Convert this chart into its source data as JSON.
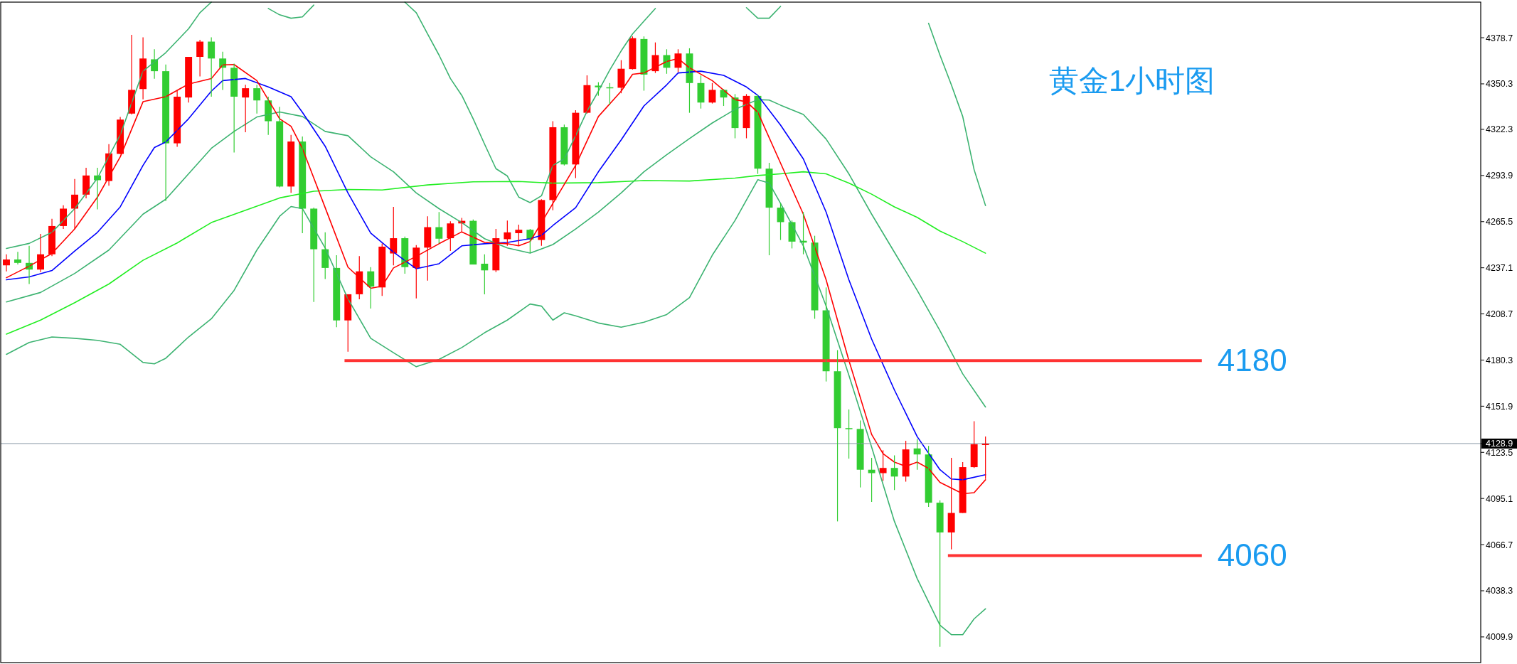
{
  "chart_data": {
    "type": "candlestick",
    "title": "黄金1小时图",
    "categories": [
      null,
      null,
      null,
      null,
      null,
      null,
      null,
      null,
      null,
      null,
      null,
      null,
      null,
      null,
      null,
      null,
      null,
      null,
      null,
      null,
      null,
      null,
      null,
      null,
      null,
      null,
      null,
      null,
      null,
      null,
      null,
      null,
      null,
      null,
      null,
      null,
      null,
      null,
      null,
      null,
      null,
      null,
      null,
      null,
      null,
      null,
      null,
      null,
      null,
      null,
      null,
      null,
      null,
      null,
      null,
      null,
      null,
      null,
      null,
      null,
      null,
      null,
      null,
      null,
      null,
      null,
      null,
      null,
      null,
      null,
      null,
      null,
      null,
      null,
      null,
      null,
      null,
      null,
      null,
      null,
      null,
      null,
      null,
      null,
      null,
      null,
      null,
      null,
      null,
      null,
      null,
      null,
      null,
      null,
      null,
      null,
      null,
      null,
      null,
      null,
      null,
      null,
      null,
      null,
      null,
      null,
      null,
      null,
      null,
      null,
      null,
      null,
      null,
      null,
      null,
      null,
      null,
      null,
      null,
      null,
      null,
      null,
      null,
      null,
      null,
      null,
      null,
      null,
      null,
      null
    ],
    "ohlc": [
      [
        4238.6,
        4245.4,
        4234.9,
        4242.2
      ],
      [
        4242.2,
        4246.9,
        4239.1,
        4240.1
      ],
      [
        4240.1,
        4250.6,
        4227.1,
        4236.0
      ],
      [
        4236.0,
        4257.9,
        4234.4,
        4245.4
      ],
      [
        4245.4,
        4267.3,
        4244.3,
        4262.8
      ],
      [
        4262.8,
        4275.6,
        4261.0,
        4273.5
      ],
      [
        4273.5,
        4291.8,
        4261.0,
        4282.1
      ],
      [
        4282.1,
        4298.6,
        4279.8,
        4293.9
      ],
      [
        4293.9,
        4298.6,
        4273.0,
        4291.0
      ],
      [
        4290.5,
        4313.2,
        4287.6,
        4307.5
      ],
      [
        4307.2,
        4329.9,
        4307.0,
        4328.3
      ],
      [
        4332.0,
        4380.5,
        4331.5,
        4346.6
      ],
      [
        4347.1,
        4378.9,
        4340.8,
        4365.9
      ],
      [
        4365.4,
        4371.6,
        4353.4,
        4358.1
      ],
      [
        4358.1,
        4362.2,
        4278.2,
        4313.7
      ],
      [
        4313.7,
        4346.1,
        4311.6,
        4342.4
      ],
      [
        4341.9,
        4366.9,
        4338.8,
        4366.9
      ],
      [
        4366.9,
        4377.4,
        4354.9,
        4376.3
      ],
      [
        4376.3,
        4378.9,
        4342.4,
        4365.9
      ],
      [
        4365.9,
        4370.1,
        4346.6,
        4360.2
      ],
      [
        4360.2,
        4362.8,
        4308.0,
        4342.4
      ],
      [
        4341.9,
        4349.7,
        4320.5,
        4347.6
      ],
      [
        4347.6,
        4349.7,
        4332.0,
        4340.1
      ],
      [
        4340.1,
        4342.4,
        4318.9,
        4327.3
      ],
      [
        4327.3,
        4336.2,
        4286.6,
        4287.1
      ],
      [
        4287.1,
        4318.9,
        4283.2,
        4314.8
      ],
      [
        4314.8,
        4317.9,
        4258.4,
        4273.5
      ],
      [
        4273.5,
        4274.1,
        4216.1,
        4248.5
      ],
      [
        4248.5,
        4258.9,
        4230.2,
        4237.0
      ],
      [
        4237.0,
        4244.8,
        4200.5,
        4204.7
      ],
      [
        4204.7,
        4220.8,
        4185.4,
        4220.8
      ],
      [
        4220.8,
        4244.3,
        4217.7,
        4234.9
      ],
      [
        4234.9,
        4237.5,
        4212.0,
        4225.5
      ],
      [
        4225.0,
        4252.1,
        4219.8,
        4250.1
      ],
      [
        4245.9,
        4274.6,
        4238.6,
        4255.3
      ],
      [
        4255.3,
        4256.3,
        4233.4,
        4237.5
      ],
      [
        4237.0,
        4251.1,
        4218.2,
        4249.5
      ],
      [
        4249.5,
        4268.8,
        4229.2,
        4262.1
      ],
      [
        4262.1,
        4271.4,
        4252.1,
        4255.0
      ],
      [
        4255.3,
        4265.7,
        4247.4,
        4264.4
      ],
      [
        4264.4,
        4267.8,
        4258.9,
        4266.0
      ],
      [
        4266.0,
        4266.8,
        4239.1,
        4239.1
      ],
      [
        4239.6,
        4245.4,
        4220.8,
        4235.5
      ],
      [
        4235.5,
        4261.0,
        4234.4,
        4255.3
      ],
      [
        4254.7,
        4266.2,
        4250.6,
        4258.9
      ],
      [
        4258.4,
        4263.6,
        4250.6,
        4260.5
      ],
      [
        4260.5,
        4261.0,
        4246.4,
        4254.5
      ],
      [
        4254.2,
        4279.3,
        4250.6,
        4278.8
      ],
      [
        4278.8,
        4327.3,
        4272.5,
        4323.6
      ],
      [
        4323.6,
        4325.2,
        4300.1,
        4300.7
      ],
      [
        4300.7,
        4334.1,
        4292.3,
        4332.5
      ],
      [
        4332.5,
        4355.5,
        4332.0,
        4349.5
      ],
      [
        4349.2,
        4351.3,
        4343.0,
        4348.2
      ],
      [
        4348.2,
        4350.8,
        4337.2,
        4347.6
      ],
      [
        4347.9,
        4364.9,
        4344.5,
        4359.6
      ],
      [
        4359.4,
        4379.5,
        4359.1,
        4378.4
      ],
      [
        4377.9,
        4379.5,
        4346.1,
        4356.0
      ],
      [
        4358.1,
        4375.8,
        4357.0,
        4368.0
      ],
      [
        4368.0,
        4371.6,
        4356.5,
        4360.2
      ],
      [
        4360.2,
        4371.6,
        4357.5,
        4369.0
      ],
      [
        4369.0,
        4372.2,
        4332.5,
        4350.8
      ],
      [
        4350.8,
        4355.5,
        4335.1,
        4338.8
      ],
      [
        4338.8,
        4350.8,
        4338.2,
        4346.6
      ],
      [
        4346.6,
        4347.1,
        4336.7,
        4341.9
      ],
      [
        4341.9,
        4344.0,
        4316.8,
        4323.1
      ],
      [
        4323.1,
        4344.0,
        4316.8,
        4342.9
      ],
      [
        4342.9,
        4343.5,
        4294.9,
        4298.1
      ],
      [
        4298.1,
        4301.7,
        4244.8,
        4274.1
      ],
      [
        4274.1,
        4276.7,
        4254.2,
        4265.2
      ],
      [
        4265.2,
        4266.2,
        4249.0,
        4253.2
      ],
      [
        4253.7,
        4271.4,
        4245.4,
        4252.6
      ],
      [
        4252.6,
        4256.8,
        4205.7,
        4210.9
      ],
      [
        4210.9,
        4225.0,
        4167.1,
        4173.4
      ],
      [
        4173.4,
        4186.4,
        4081.0,
        4138.4
      ],
      [
        4138.4,
        4149.9,
        4119.6,
        4137.9
      ],
      [
        4137.9,
        4143.1,
        4101.9,
        4112.8
      ],
      [
        4112.8,
        4120.1,
        4093.0,
        4110.7
      ],
      [
        4110.7,
        4124.8,
        4106.0,
        4113.9
      ],
      [
        4113.9,
        4121.7,
        4100.3,
        4108.6
      ],
      [
        4108.6,
        4130.6,
        4105.5,
        4125.3
      ],
      [
        4125.9,
        4131.6,
        4112.8,
        4122.2
      ],
      [
        4122.2,
        4127.4,
        4089.9,
        4092.5
      ],
      [
        4092.5,
        4094.0,
        4003.8,
        4074.2
      ],
      [
        4074.2,
        4120.1,
        4063.8,
        4086.2
      ],
      [
        4086.2,
        4117.5,
        4086.2,
        4114.4
      ],
      [
        4114.4,
        4142.6,
        4113.9,
        4128.5
      ],
      [
        4128.0,
        4133.2,
        4107.1,
        4128.9
      ],
      null,
      null,
      null,
      null,
      null,
      null,
      null,
      null,
      null,
      null,
      null,
      null,
      null,
      null,
      null,
      null,
      null,
      null,
      null,
      null,
      null,
      null,
      null,
      null,
      null,
      null,
      null,
      null,
      null,
      null,
      null,
      null,
      null,
      null,
      null,
      null,
      null,
      null,
      null,
      null,
      null,
      null,
      null
    ],
    "colors": [
      "#ff0000",
      "#32cd32",
      "#32cd32",
      "#ff0000",
      "#ff0000",
      "#ff0000",
      "#ff0000",
      "#ff0000",
      "#32cd32",
      "#ff0000",
      "#ff0000",
      "#ff0000",
      "#ff0000",
      "#32cd32",
      "#32cd32",
      "#ff0000",
      "#ff0000",
      "#ff0000",
      "#32cd32",
      "#32cd32",
      "#32cd32",
      "#ff0000",
      "#32cd32",
      "#32cd32",
      "#32cd32",
      "#ff0000",
      "#32cd32",
      "#32cd32",
      "#32cd32",
      "#32cd32",
      "#ff0000",
      "#ff0000",
      "#32cd32",
      "#ff0000",
      "#ff0000",
      "#32cd32",
      "#ff0000",
      "#ff0000",
      "#32cd32",
      "#ff0000",
      "#ff0000",
      "#32cd32",
      "#32cd32",
      "#ff0000",
      "#ff0000",
      "#ff0000",
      "#32cd32",
      "#ff0000",
      "#ff0000",
      "#32cd32",
      "#ff0000",
      "#ff0000",
      "#32cd32",
      "#32cd32",
      "#ff0000",
      "#ff0000",
      "#32cd32",
      "#ff0000",
      "#32cd32",
      "#ff0000",
      "#32cd32",
      "#32cd32",
      "#ff0000",
      "#32cd32",
      "#32cd32",
      "#ff0000",
      "#32cd32",
      "#32cd32",
      "#32cd32",
      "#32cd32",
      "#32cd32",
      "#32cd32",
      "#32cd32",
      "#32cd32",
      "#32cd32",
      "#32cd32",
      "#32cd32",
      "#ff0000",
      "#32cd32",
      "#ff0000",
      "#32cd32",
      "#32cd32",
      "#32cd32",
      "#ff0000",
      "#ff0000",
      "#ff0000",
      "#ff0000",
      null,
      null,
      null,
      null,
      null,
      null,
      null,
      null,
      null,
      null,
      null,
      null,
      null,
      null,
      null,
      null,
      null,
      null,
      null,
      null,
      null,
      null,
      null,
      null,
      null,
      null,
      null,
      null,
      null,
      null,
      null,
      null,
      null,
      null,
      null,
      null,
      null,
      null,
      null,
      null,
      null,
      null,
      null
    ],
    "series": [
      {
        "type": "line",
        "color": "#3cb371",
        "values": [
          4249.0,
          null,
          4252.1,
          null,
          4258.9,
          null,
          4273.5,
          null,
          4292.3,
          null,
          4318.9,
          null,
          4358.1,
          null,
          4369.5,
          null,
          4384.2,
          4394.1,
          4400.6,
          null,
          null,
          null,
          null,
          null,
          null,
          null,
          null,
          null,
          null,
          null,
          null,
          null,
          null,
          null,
          null,
          null,
          null,
          null,
          null,
          null,
          null,
          null,
          null,
          null,
          null,
          null,
          null,
          null,
          null,
          null,
          null,
          null,
          null,
          null,
          null,
          null,
          null,
          null,
          null,
          null,
          null,
          null,
          null,
          null,
          null,
          null,
          null,
          null,
          null,
          null,
          null,
          null,
          null,
          null,
          null,
          null,
          null,
          null,
          null,
          null,
          null,
          null,
          null,
          null,
          null,
          null,
          null,
          null,
          null,
          null,
          null,
          null,
          null,
          null,
          null,
          null,
          null,
          null,
          null,
          null,
          null,
          null,
          null,
          null,
          null,
          null,
          null,
          null,
          null,
          null,
          null,
          null,
          null,
          null,
          null,
          null,
          null,
          null,
          null,
          null,
          null,
          null,
          null,
          null,
          null,
          null,
          null,
          null,
          null,
          null
        ]
      },
      {
        "type": "line",
        "color": "#3cb371",
        "values": [
          null,
          null,
          null,
          null,
          null,
          null,
          null,
          null,
          null,
          null,
          null,
          null,
          null,
          null,
          null,
          null,
          null,
          null,
          null,
          null,
          null,
          null,
          null,
          4396.7,
          4392.8,
          4390.7,
          4391.5,
          4398.8,
          null,
          null,
          null,
          null,
          null,
          null,
          null,
          null,
          null,
          null,
          null,
          null,
          null,
          null,
          null,
          null,
          null,
          null,
          null,
          null,
          null,
          null,
          null,
          null,
          null,
          null,
          null,
          null,
          null,
          null,
          null,
          null,
          null,
          null,
          null,
          null,
          null,
          null,
          null,
          null,
          null,
          null,
          null,
          null,
          null,
          null,
          null,
          null,
          null,
          null,
          null,
          null,
          null,
          null,
          null,
          null,
          null,
          null,
          null,
          null,
          null,
          null,
          null,
          null,
          null,
          null,
          null,
          null,
          null,
          null,
          null,
          null,
          null,
          null,
          null,
          null,
          null,
          null,
          null,
          null,
          null,
          null,
          null,
          null,
          null,
          null,
          null,
          null,
          null,
          null,
          null,
          null,
          null,
          null,
          null,
          null,
          null,
          null,
          null,
          null,
          null,
          null
        ]
      },
      {
        "type": "line",
        "color": "#3cb371",
        "values": [
          null,
          null,
          null,
          null,
          null,
          null,
          null,
          null,
          null,
          null,
          null,
          null,
          null,
          null,
          null,
          null,
          null,
          null,
          null,
          null,
          null,
          null,
          null,
          null,
          null,
          null,
          null,
          null,
          null,
          null,
          null,
          null,
          null,
          null,
          null,
          4400.6,
          4394.1,
          4381.0,
          4368.0,
          4353.6,
          4343.2,
          4328.8,
          4313.2,
          4298.1,
          4293.6,
          4280.6,
          4277.2,
          4281.4,
          4300.1,
          4304.1,
          4318.4,
          4333.5,
          4345.8,
          4358.9,
          4370.6,
          4381.0,
          4388.9,
          4396.7,
          null,
          null,
          null,
          null,
          null,
          null,
          null,
          null,
          null,
          null,
          null,
          null,
          null,
          null,
          null,
          null,
          null,
          null,
          null,
          null,
          null,
          null,
          null,
          null,
          null,
          null,
          null,
          null,
          null,
          null,
          null,
          null,
          null,
          null,
          null,
          null,
          null,
          null,
          null,
          null,
          null,
          null,
          null,
          null,
          null,
          null,
          null,
          null,
          null,
          null,
          null,
          null,
          null,
          null,
          null,
          null,
          null,
          null,
          null,
          null,
          null,
          null,
          null,
          null,
          null,
          null,
          null,
          null,
          null,
          null,
          null,
          null
        ]
      },
      {
        "type": "line",
        "color": "#3cb371",
        "values": [
          null,
          null,
          null,
          null,
          null,
          null,
          null,
          null,
          null,
          null,
          null,
          null,
          null,
          null,
          null,
          null,
          null,
          null,
          null,
          null,
          null,
          null,
          null,
          null,
          null,
          null,
          null,
          null,
          null,
          null,
          null,
          null,
          null,
          null,
          null,
          null,
          null,
          null,
          null,
          null,
          null,
          null,
          null,
          null,
          null,
          null,
          null,
          null,
          null,
          null,
          null,
          null,
          null,
          null,
          null,
          null,
          null,
          null,
          null,
          null,
          null,
          null,
          null,
          null,
          null,
          4397.2,
          4390.7,
          4390.7,
          4398.0,
          null,
          null,
          null,
          null,
          null,
          null,
          null,
          null,
          null,
          null,
          null,
          null,
          null,
          null,
          null,
          null,
          null,
          null,
          null,
          null,
          null,
          null,
          null,
          null,
          null,
          null,
          null,
          null,
          null,
          null,
          null,
          null,
          null,
          null,
          null,
          null,
          null,
          null,
          null,
          null,
          null,
          null,
          null,
          null,
          null,
          null,
          null,
          null,
          null,
          null,
          null,
          null,
          null,
          null,
          null,
          null,
          null,
          null,
          null,
          null,
          null
        ]
      },
      {
        "type": "line",
        "color": "#3cb371",
        "values": [
          null,
          null,
          null,
          null,
          null,
          null,
          null,
          null,
          null,
          null,
          null,
          null,
          null,
          null,
          null,
          null,
          null,
          null,
          null,
          null,
          null,
          null,
          null,
          null,
          null,
          null,
          null,
          null,
          null,
          null,
          null,
          null,
          null,
          null,
          null,
          null,
          null,
          null,
          null,
          null,
          null,
          null,
          null,
          null,
          null,
          null,
          null,
          null,
          null,
          null,
          null,
          null,
          null,
          null,
          null,
          null,
          null,
          null,
          null,
          null,
          null,
          null,
          null,
          null,
          null,
          null,
          null,
          null,
          null,
          null,
          null,
          null,
          null,
          null,
          null,
          null,
          null,
          null,
          null,
          null,
          null,
          4387.6,
          4368.0,
          4349.7,
          4330.2,
          4297.5,
          4275.4,
          null,
          null,
          null,
          null,
          null,
          null,
          null,
          null,
          null,
          null,
          null,
          null,
          null,
          null,
          null,
          null,
          null,
          null,
          null,
          null,
          null,
          null,
          null,
          null,
          null,
          null,
          null,
          null,
          null,
          null,
          null,
          null,
          null,
          null,
          null,
          null,
          null,
          null,
          null,
          null,
          null,
          null,
          null
        ]
      },
      {
        "type": "line",
        "color": "#3cb371",
        "values": [
          4216.1,
          null,
          null,
          4221.9,
          null,
          null,
          4233.6,
          null,
          null,
          4248.0,
          null,
          null,
          4270.1,
          null,
          4279.3,
          null,
          4294.9,
          null,
          4310.6,
          null,
          4321.0,
          null,
          4329.9,
          null,
          4333.0,
          null,
          4330.2,
          null,
          4321.0,
          null,
          4318.4,
          null,
          4305.4,
          null,
          4296.2,
          null,
          4283.2,
          null,
          4273.5,
          null,
          4264.9,
          null,
          4255.0,
          null,
          4249.3,
          null,
          4246.1,
          null,
          4251.4,
          null,
          4261.0,
          null,
          4271.4,
          null,
          4283.2,
          null,
          4296.2,
          null,
          4306.7,
          null,
          4316.6,
          null,
          4326.2,
          null,
          4334.6,
          null,
          4340.6,
          4340.3,
          4337.2,
          null,
          4331.5,
          null,
          4316.3,
          null,
          4294.9,
          null,
          4270.1,
          null,
          4246.7,
          null,
          4223.2,
          null,
          4198.4,
          null,
          4171.8,
          null,
          4151.4,
          null,
          null,
          null,
          null,
          null,
          null,
          null,
          null,
          null,
          null,
          null,
          null,
          null,
          null,
          null,
          null,
          null,
          null,
          null,
          null,
          null,
          null,
          null,
          null,
          null,
          null,
          null,
          null,
          null,
          null,
          null,
          null,
          null,
          null,
          null,
          null,
          null,
          null,
          null,
          null,
          null,
          null,
          null
        ]
      },
      {
        "type": "line",
        "color": "#3cb371",
        "values": [
          4183.8,
          null,
          4191.1,
          null,
          4194.5,
          null,
          4193.7,
          null,
          4192.4,
          null,
          4190.0,
          null,
          4178.8,
          4178.0,
          4181.4,
          null,
          4194.5,
          null,
          4205.7,
          null,
          4223.2,
          null,
          4248.0,
          null,
          4268.8,
          4274.8,
          4273.5,
          null,
          4249.3,
          null,
          4218.0,
          null,
          4193.7,
          null,
          4184.8,
          null,
          4176.2,
          null,
          4180.7,
          null,
          4188.0,
          null,
          4197.1,
          null,
          4204.9,
          null,
          4214.8,
          4213.5,
          4204.9,
          4209.4,
          4207.5,
          null,
          4203.1,
          null,
          4200.5,
          null,
          4203.6,
          null,
          4208.3,
          null,
          4218.7,
          null,
          4244.8,
          null,
          4266.2,
          null,
          4291.3,
          4289.2,
          4276.7,
          null,
          4250.6,
          null,
          4213.5,
          null,
          4171.0,
          null,
          4126.7,
          null,
          4081.0,
          null,
          4045.8,
          null,
          4017.1,
          4011.3,
          4011.3,
          4021.0,
          4027.2,
          null,
          null,
          null,
          null,
          null,
          null,
          null,
          null,
          null,
          null,
          null,
          null,
          null,
          null,
          null,
          null,
          null,
          null,
          null,
          null,
          null,
          null,
          null,
          null,
          null,
          null,
          null,
          null,
          null,
          null,
          null,
          null,
          null,
          null,
          null,
          null,
          null,
          null,
          null,
          null,
          null,
          null,
          null
        ]
      },
      {
        "type": "line",
        "color": "#22ee22",
        "values": [
          4196.3,
          null,
          null,
          4204.9,
          null,
          null,
          4215.6,
          null,
          null,
          4227.1,
          null,
          null,
          4241.7,
          null,
          null,
          4252.4,
          null,
          null,
          4264.9,
          null,
          null,
          4272.5,
          null,
          null,
          4280.1,
          null,
          null,
          4284.2,
          null,
          null,
          4285.3,
          null,
          null,
          4285.0,
          null,
          null,
          null,
          4288.1,
          null,
          null,
          null,
          4290.0,
          null,
          null,
          null,
          4290.2,
          null,
          null,
          4289.2,
          null,
          null,
          null,
          4289.5,
          null,
          null,
          null,
          4290.8,
          null,
          null,
          null,
          4290.5,
          null,
          null,
          null,
          4292.3,
          null,
          4293.9,
          null,
          4294.9,
          null,
          4296.2,
          null,
          4294.9,
          null,
          4289.2,
          null,
          4282.4,
          null,
          4274.6,
          null,
          4268.1,
          null,
          4259.7,
          null,
          4253.2,
          null,
          4246.1,
          null,
          null,
          null,
          null,
          null,
          null,
          null,
          null,
          null,
          null,
          null,
          null,
          null,
          null,
          null,
          null,
          null,
          null,
          null,
          null,
          null,
          null,
          null,
          null,
          null,
          null,
          null,
          null,
          null,
          null,
          null,
          null,
          null,
          null,
          null,
          null,
          null,
          null,
          null,
          null,
          null,
          null,
          null
        ]
      },
      {
        "type": "line",
        "color": "#0000ff",
        "values": [
          4229.7,
          null,
          4231.5,
          null,
          4235.4,
          null,
          4247.4,
          null,
          4258.9,
          null,
          4274.6,
          null,
          4300.1,
          4311.1,
          4314.5,
          null,
          4328.8,
          null,
          4345.8,
          4352.3,
          null,
          4353.6,
          null,
          4348.4,
          null,
          4342.4,
          4332.8,
          null,
          4311.9,
          null,
          4283.2,
          null,
          4258.4,
          null,
          4246.7,
          null,
          4236.5,
          null,
          4239.6,
          null,
          4250.6,
          null,
          4251.9,
          null,
          4252.7,
          null,
          4255.0,
          4257.1,
          4263.1,
          null,
          4274.1,
          null,
          4296.2,
          null,
          4315.8,
          null,
          4336.7,
          null,
          4349.7,
          4357.0,
          null,
          4358.1,
          null,
          4355.5,
          null,
          4348.4,
          4343.2,
          null,
          4324.9,
          null,
          4304.1,
          null,
          4271.4,
          null,
          4229.7,
          null,
          4193.2,
          null,
          4161.9,
          null,
          4133.2,
          null,
          4112.8,
          4107.1,
          4106.6,
          null,
          4109.7,
          null,
          null,
          null,
          null,
          null,
          null,
          null,
          null,
          null,
          null,
          null,
          null,
          null,
          null,
          null,
          null,
          null,
          null,
          null,
          null,
          null,
          null,
          null,
          null,
          null,
          null,
          null,
          null,
          null,
          null,
          null,
          null,
          null,
          null,
          null,
          null,
          null,
          null,
          null,
          null,
          null,
          null,
          null
        ]
      },
      {
        "type": "line",
        "color": "#ff0000",
        "values": [
          4231.0,
          null,
          4238.1,
          null,
          4245.9,
          null,
          4261.0,
          null,
          4280.6,
          null,
          4305.4,
          null,
          4339.3,
          null,
          4342.4,
          null,
          4350.2,
          null,
          4353.6,
          4362.0,
          4362.2,
          null,
          4352.3,
          null,
          4328.8,
          4324.2,
          4310.6,
          null,
          4274.1,
          null,
          4237.5,
          null,
          4224.5,
          4225.8,
          4237.0,
          null,
          4244.1,
          null,
          4251.9,
          null,
          4259.2,
          null,
          4252.7,
          null,
          4251.9,
          4250.6,
          4253.2,
          null,
          4276.7,
          null,
          4300.1,
          null,
          4330.2,
          null,
          4345.8,
          4356.2,
          4357.0,
          null,
          4364.1,
          4365.9,
          4360.2,
          null,
          4352.3,
          null,
          4340.6,
          4339.3,
          4332.8,
          null,
          4301.5,
          null,
          4270.1,
          null,
          4229.7,
          null,
          4180.1,
          null,
          4134.5,
          4122.7,
          4117.5,
          4114.9,
          4117.5,
          4113.6,
          4105.0,
          null,
          4098.0,
          4098.7,
          4106.6,
          null,
          null,
          null,
          null,
          null,
          null,
          null,
          null,
          null,
          null,
          null,
          null,
          null,
          null,
          null,
          null,
          null,
          null,
          null,
          null,
          null,
          null,
          null,
          null,
          null,
          null,
          null,
          null,
          null,
          null,
          null,
          null,
          null,
          null,
          null,
          null,
          null,
          null,
          null,
          null,
          null,
          null,
          null
        ]
      }
    ],
    "ylim": [
      3994.1,
      4400.6
    ],
    "yticks": [
      4009.9,
      4038.3,
      4066.7,
      4095.1,
      4123.5,
      {
        "value": 4128.9,
        "label": "4128.9"
      },
      4151.9,
      4180.3,
      4208.7,
      4237.1,
      4265.5,
      4293.9,
      4322.3,
      4350.3,
      4378.7
    ],
    "ref_lines": [
      {
        "axis": "y",
        "value": 4180,
        "label": "4180",
        "color": "#ff3333"
      },
      {
        "axis": "y",
        "value": 4060,
        "label": "4060",
        "color": "#ff3333"
      },
      {
        "axis": "y",
        "value": 4128.9,
        "color": "#8c9aa8"
      }
    ]
  }
}
